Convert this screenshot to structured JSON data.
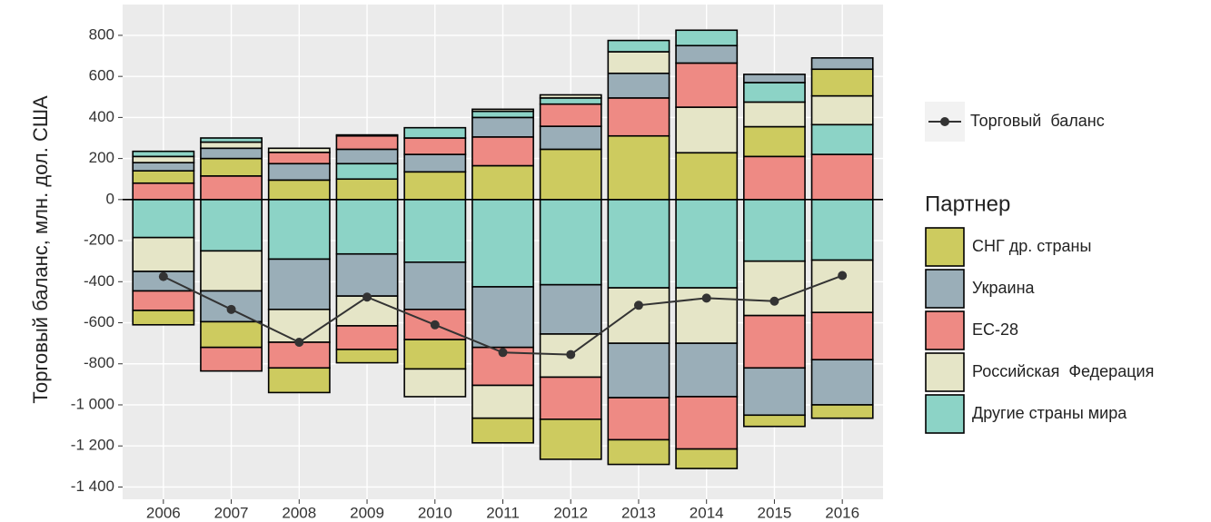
{
  "chart_data": {
    "type": "bar",
    "y_axis_label": "Торговый баланс, млн. дол. США",
    "categories": [
      "2006",
      "2007",
      "2008",
      "2009",
      "2010",
      "2011",
      "2012",
      "2013",
      "2014",
      "2015",
      "2016"
    ],
    "legend_title": "Партнер",
    "series": [
      {
        "name": "СНГ др. страны",
        "color": "#cdcb5f",
        "positive": [
          60,
          85,
          95,
          100,
          135,
          165,
          245,
          310,
          228,
          145,
          130
        ],
        "negative": [
          -70,
          -125,
          -120,
          -65,
          -143,
          -120,
          -195,
          -120,
          -95,
          -55,
          -65
        ]
      },
      {
        "name": "Украина",
        "color": "#9aaeb8",
        "positive": [
          40,
          50,
          80,
          70,
          85,
          95,
          112,
          120,
          85,
          40,
          55
        ],
        "negative": [
          -95,
          -150,
          -245,
          -205,
          -230,
          -295,
          -240,
          -265,
          -260,
          -230,
          -220
        ]
      },
      {
        "name": "ЕС-28",
        "color": "#ee8a84",
        "positive": [
          80,
          115,
          55,
          65,
          80,
          140,
          108,
          185,
          215,
          210,
          220
        ],
        "negative": [
          -95,
          -115,
          -125,
          -115,
          -147,
          -185,
          -205,
          -205,
          -255,
          -255,
          -230
        ]
      },
      {
        "name": "Российская  Федерация",
        "color": "#e5e5c7",
        "positive": [
          30,
          30,
          20,
          5,
          0,
          10,
          15,
          105,
          222,
          120,
          140
        ],
        "negative": [
          -165,
          -195,
          -160,
          -145,
          -135,
          -160,
          -210,
          -270,
          -270,
          -265,
          -255
        ]
      },
      {
        "name": "Другие страны мира",
        "color": "#8cd3c6",
        "positive": [
          25,
          20,
          0,
          75,
          50,
          30,
          30,
          55,
          75,
          95,
          145
        ],
        "negative": [
          -185,
          -250,
          -290,
          -265,
          -305,
          -425,
          -415,
          -430,
          -430,
          -300,
          -295
        ]
      }
    ],
    "line": {
      "name": "Торговый  баланс",
      "color": "#333333",
      "values": [
        -375,
        -535,
        -695,
        -475,
        -610,
        -745,
        -755,
        -515,
        -480,
        -495,
        -370
      ]
    },
    "ylim": [
      -1460,
      950
    ],
    "yticks": [
      {
        "value": -1400,
        "label": "-1 400"
      },
      {
        "value": -1200,
        "label": "-1 200"
      },
      {
        "value": -1000,
        "label": "-1 000"
      },
      -800,
      -600,
      -400,
      -200,
      0,
      200,
      400,
      600,
      800
    ],
    "grid": true
  }
}
